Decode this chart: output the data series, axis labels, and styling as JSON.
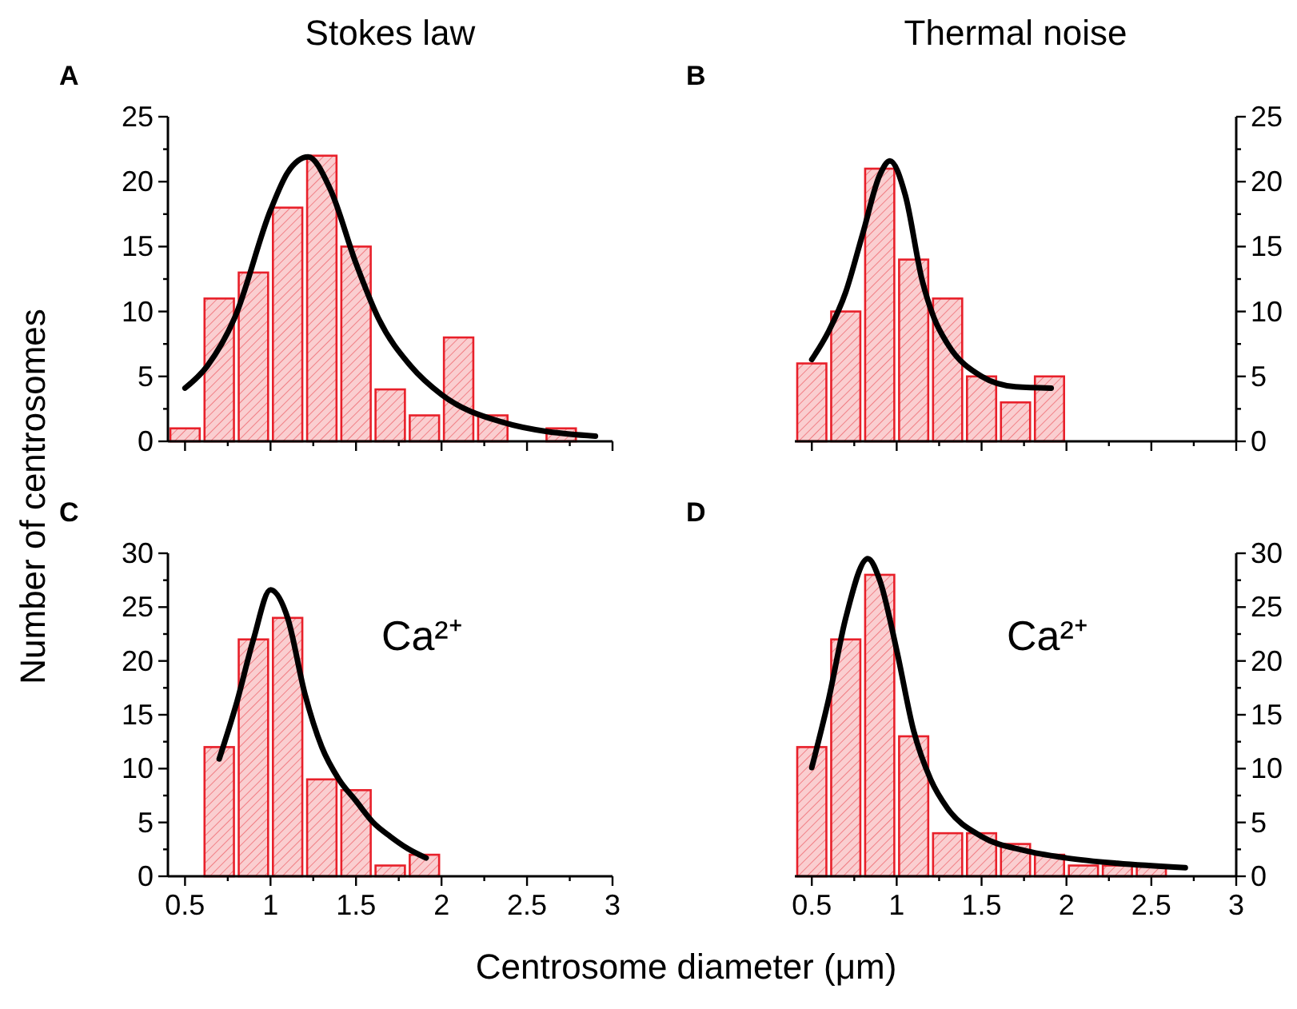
{
  "chart_data": [
    {
      "type": "histogram",
      "title": "Stokes law",
      "ylabel": "Number of centrosomes",
      "annotations": [
        "A"
      ],
      "tick_labels": "y",
      "xlim": [
        0.4,
        3
      ],
      "xticks": [
        0.5,
        {
          "value": 0.75,
          "label": null
        },
        1,
        {
          "value": 1.25,
          "label": null
        },
        1.5,
        {
          "value": 1.75,
          "label": null
        },
        2,
        {
          "value": 2.25,
          "label": null
        },
        2.5,
        {
          "value": 2.75,
          "label": null
        },
        3
      ],
      "ylim": [
        0,
        25
      ],
      "yticks": [
        0,
        {
          "value": 2.5,
          "label": null
        },
        5,
        {
          "value": 7.5,
          "label": null
        },
        10,
        {
          "value": 12.5,
          "label": null
        },
        15,
        {
          "value": 17.5,
          "label": null
        },
        20,
        {
          "value": 22.5,
          "label": null
        },
        25
      ],
      "series": [
        {
          "type": "histogram",
          "color": "#e8202a",
          "bins": [
            0.4,
            0.6,
            0.8,
            1.0,
            1.2,
            1.4,
            1.6,
            1.8,
            2.0,
            2.2,
            2.4,
            2.6,
            2.8
          ],
          "values": [
            1,
            11,
            13,
            18,
            22,
            15,
            4,
            2,
            8,
            2,
            0,
            1
          ]
        },
        {
          "type": "line",
          "color": "#000000",
          "x": [
            0.5,
            0.63,
            0.79,
            1.0,
            1.1,
            1.22,
            1.35,
            1.5,
            1.63,
            1.82,
            2.0,
            2.35,
            2.9
          ],
          "values": [
            4.1,
            5.8,
            9.5,
            17.8,
            20.7,
            21.9,
            19.4,
            13.7,
            9.5,
            5.8,
            3.6,
            1.5,
            0.4
          ]
        }
      ]
    },
    {
      "type": "histogram",
      "title": "Thermal noise",
      "annotations": [
        "B"
      ],
      "tick_labels": "y",
      "xlim": [
        0.4,
        3
      ],
      "xticks": [
        0.5,
        {
          "value": 0.75,
          "label": null
        },
        1,
        {
          "value": 1.25,
          "label": null
        },
        1.5,
        {
          "value": 1.75,
          "label": null
        },
        2,
        {
          "value": 2.25,
          "label": null
        },
        2.5,
        {
          "value": 2.75,
          "label": null
        },
        3
      ],
      "ylim": [
        0,
        25
      ],
      "yticks": [
        0,
        {
          "value": 2.5,
          "label": null
        },
        5,
        {
          "value": 7.5,
          "label": null
        },
        10,
        {
          "value": 12.5,
          "label": null
        },
        15,
        {
          "value": 17.5,
          "label": null
        },
        20,
        {
          "value": 22.5,
          "label": null
        },
        25
      ],
      "series": [
        {
          "type": "histogram",
          "color": "#e8202a",
          "bins": [
            0.4,
            0.6,
            0.8,
            1.0,
            1.2,
            1.4,
            1.6,
            1.8,
            2.0
          ],
          "values": [
            6,
            10,
            21,
            14,
            11,
            5,
            3,
            5
          ]
        },
        {
          "type": "line",
          "color": "#000000",
          "x": [
            0.5,
            0.6,
            0.7,
            0.8,
            0.9,
            0.96,
            1.05,
            1.15,
            1.22,
            1.3,
            1.5,
            1.7,
            1.91
          ],
          "values": [
            6.3,
            8.5,
            11.5,
            16,
            20.5,
            21.6,
            19,
            12.4,
            9.5,
            7.5,
            5.0,
            4.2,
            4.1
          ]
        }
      ]
    },
    {
      "type": "histogram",
      "xlabel": "Centrosome diameter (μm)",
      "annotations": [
        "C",
        "Ca²⁺"
      ],
      "xlim": [
        0.4,
        3
      ],
      "xticks": [
        0.5,
        {
          "value": 0.75,
          "label": null
        },
        1,
        {
          "value": 1.25,
          "label": null
        },
        1.5,
        {
          "value": 1.75,
          "label": null
        },
        2,
        {
          "value": 2.25,
          "label": null
        },
        2.5,
        {
          "value": 2.75,
          "label": null
        },
        3
      ],
      "ylim": [
        0,
        30
      ],
      "yticks": [
        0,
        {
          "value": 2.5,
          "label": null
        },
        5,
        {
          "value": 7.5,
          "label": null
        },
        10,
        {
          "value": 12.5,
          "label": null
        },
        15,
        {
          "value": 17.5,
          "label": null
        },
        20,
        {
          "value": 22.5,
          "label": null
        },
        25,
        {
          "value": 27.5,
          "label": null
        },
        30
      ],
      "series": [
        {
          "type": "histogram",
          "color": "#e8202a",
          "bins": [
            0.6,
            0.8,
            1.0,
            1.2,
            1.4,
            1.6,
            1.8,
            2.0
          ],
          "values": [
            12,
            22,
            24,
            9,
            8,
            1,
            2
          ]
        },
        {
          "type": "line",
          "color": "#000000",
          "x": [
            0.7,
            0.8,
            0.9,
            1.0,
            1.1,
            1.2,
            1.3,
            1.4,
            1.5,
            1.6,
            1.7,
            1.8,
            1.91
          ],
          "values": [
            10.9,
            16,
            22,
            26.6,
            24,
            17,
            12,
            9,
            7,
            5,
            3.7,
            2.6,
            1.7
          ]
        }
      ]
    },
    {
      "type": "histogram",
      "annotations": [
        "D",
        "Ca²⁺"
      ],
      "xlim": [
        0.4,
        3
      ],
      "xticks": [
        0.5,
        {
          "value": 0.75,
          "label": null
        },
        1,
        {
          "value": 1.25,
          "label": null
        },
        1.5,
        {
          "value": 1.75,
          "label": null
        },
        2,
        {
          "value": 2.25,
          "label": null
        },
        2.5,
        {
          "value": 2.75,
          "label": null
        },
        3
      ],
      "ylim": [
        0,
        30
      ],
      "yticks": [
        0,
        {
          "value": 2.5,
          "label": null
        },
        5,
        {
          "value": 7.5,
          "label": null
        },
        10,
        {
          "value": 12.5,
          "label": null
        },
        15,
        {
          "value": 17.5,
          "label": null
        },
        20,
        {
          "value": 22.5,
          "label": null
        },
        25,
        {
          "value": 27.5,
          "label": null
        },
        30
      ],
      "series": [
        {
          "type": "histogram",
          "color": "#e8202a",
          "bins": [
            0.4,
            0.6,
            0.8,
            1.0,
            1.2,
            1.4,
            1.6,
            1.8,
            2.0,
            2.2,
            2.4,
            2.6
          ],
          "values": [
            12,
            22,
            28,
            13,
            4,
            4,
            3,
            2,
            1,
            1,
            1
          ]
        },
        {
          "type": "line",
          "color": "#000000",
          "x": [
            0.5,
            0.6,
            0.7,
            0.83,
            0.9,
            1.0,
            1.1,
            1.2,
            1.3,
            1.5,
            1.75,
            2.0,
            2.3,
            2.7
          ],
          "values": [
            10.1,
            16.5,
            24,
            29.5,
            27.5,
            21,
            13.5,
            9,
            6.3,
            3.7,
            2.4,
            1.7,
            1.2,
            0.8
          ]
        }
      ]
    }
  ]
}
